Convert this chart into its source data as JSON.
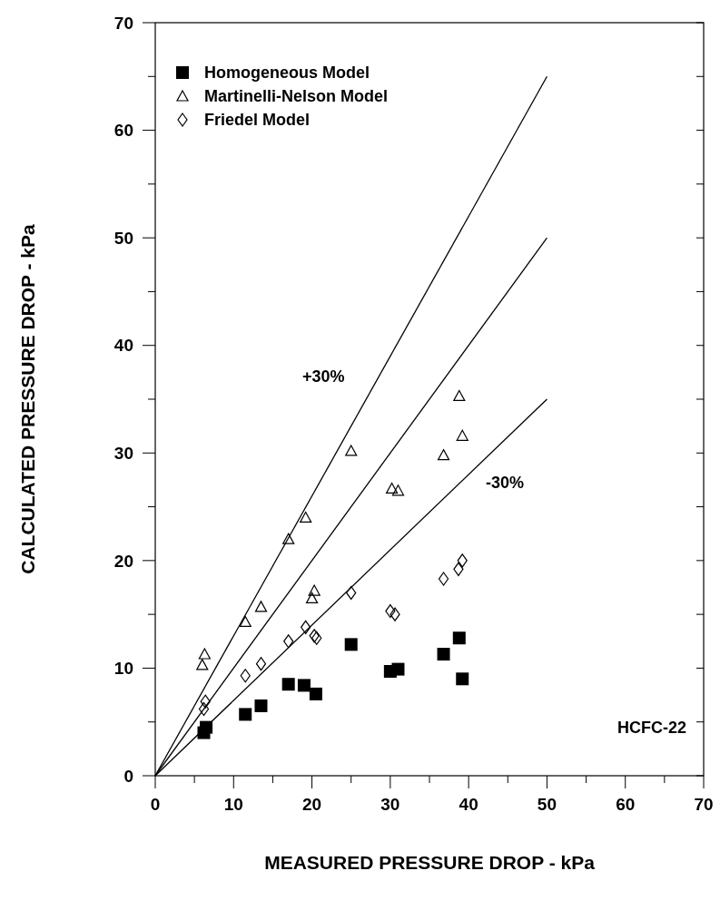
{
  "chart_data": {
    "type": "scatter",
    "xlabel": "MEASURED PRESSURE DROP - kPa",
    "ylabel": "CALCULATED PRESSURE DROP - kPa",
    "xlim": [
      0,
      70
    ],
    "ylim": [
      0,
      70
    ],
    "xticks": [
      0,
      {
        "value": 5,
        "label": null
      },
      10,
      {
        "value": 15,
        "label": null
      },
      20,
      {
        "value": 25,
        "label": null
      },
      30,
      {
        "value": 35,
        "label": null
      },
      40,
      {
        "value": 45,
        "label": null
      },
      50,
      {
        "value": 55,
        "label": null
      },
      60,
      {
        "value": 65,
        "label": null
      },
      70
    ],
    "yticks": [
      0,
      {
        "value": 5,
        "label": null
      },
      10,
      {
        "value": 15,
        "label": null
      },
      20,
      {
        "value": 25,
        "label": null
      },
      30,
      {
        "value": 35,
        "label": null
      },
      40,
      {
        "value": 45,
        "label": null
      },
      50,
      {
        "value": 55,
        "label": null
      },
      60,
      {
        "value": 65,
        "label": null
      },
      70
    ],
    "grid": false,
    "legend": "top left",
    "series": [
      {
        "name": "Homogeneous Model",
        "color": "#000000",
        "marker": "square",
        "x": [
          6.2,
          6.5,
          11.5,
          13.5,
          17,
          19,
          20.5,
          25,
          30,
          31,
          36.8,
          38.8,
          39.2
        ],
        "values": [
          4.0,
          4.5,
          5.7,
          6.5,
          8.5,
          8.4,
          7.6,
          12.2,
          9.7,
          9.9,
          11.3,
          12.8,
          9.0
        ]
      },
      {
        "name": "Martinelli-Nelson Model",
        "color": "#000000",
        "marker": "triangle",
        "x": [
          6,
          6.3,
          11.5,
          13.5,
          17,
          19.2,
          20.3,
          20,
          25,
          30.2,
          31,
          36.8,
          38.8,
          39.2
        ],
        "values": [
          10.3,
          11.3,
          14.3,
          15.7,
          22,
          24,
          17.2,
          16.5,
          30.2,
          26.7,
          26.5,
          29.8,
          35.3,
          31.6
        ]
      },
      {
        "name": "Friedel Model",
        "color": "#000000",
        "marker": "diamond",
        "x": [
          6.2,
          6.4,
          11.5,
          13.5,
          17,
          19.2,
          20.3,
          20.6,
          25,
          30,
          30.6,
          36.8,
          38.7,
          39.2
        ],
        "values": [
          6.2,
          6.9,
          9.3,
          10.4,
          12.5,
          13.8,
          13,
          12.8,
          17,
          15.3,
          15,
          18.3,
          19.2,
          20
        ]
      },
      {
        "type": "line",
        "color": "#000000",
        "marker": "none",
        "x": [
          0,
          50
        ],
        "values": [
          0,
          65
        ]
      },
      {
        "type": "line",
        "color": "#000000",
        "marker": "none",
        "x": [
          0,
          50
        ],
        "values": [
          0,
          50
        ]
      },
      {
        "type": "line",
        "color": "#000000",
        "marker": "none",
        "x": [
          0,
          50
        ],
        "values": [
          0,
          35
        ]
      }
    ],
    "annotations": [
      "+30%",
      "-30%",
      "HCFC-22"
    ]
  }
}
